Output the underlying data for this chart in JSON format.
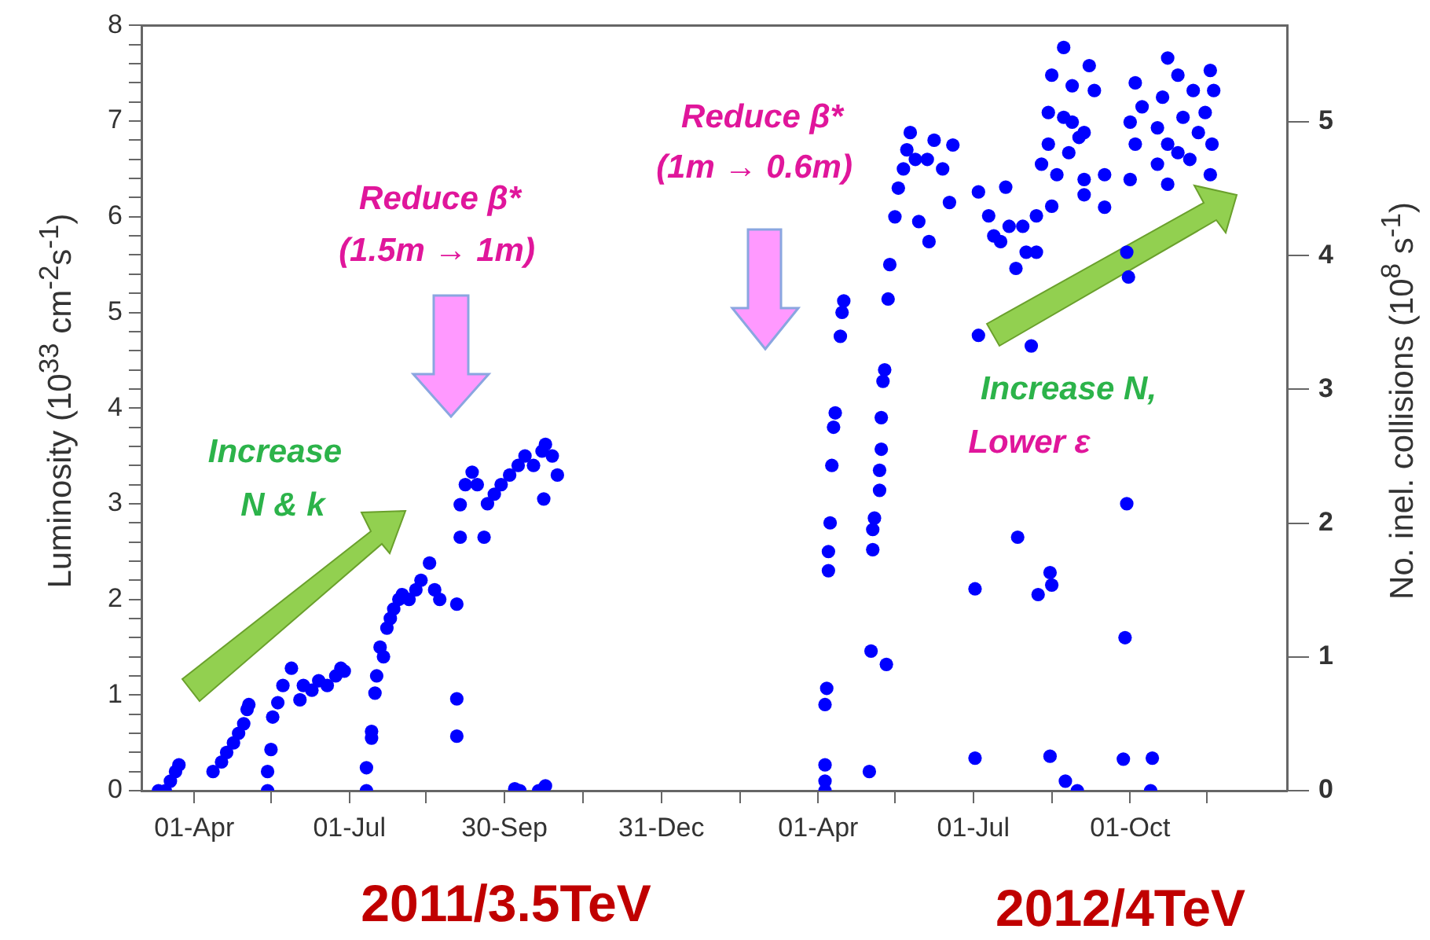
{
  "chart_data": {
    "type": "scatter",
    "ylabel": "Luminosity (10$^{33}$ cm$^{-2}$s$^{-1}$)",
    "y2label": "No. inel. collisions (10$^{8}$ s$^{-1}$)",
    "annotations": [
      "Reduce β*",
      "(1.5m → 1m)",
      "Reduce β*",
      "(1m → 0.6m)",
      "Increase",
      "N & k",
      "Increase N,",
      "Lower ε",
      "2011/3.5TeV",
      "2012/4TeV"
    ],
    "marker": "circle",
    "color": "#0000ff",
    "grid": false,
    "legend": false,
    "xlim": [
      "2011-03-01",
      "2013-01-01"
    ],
    "xticks": [
      {
        "value": "2011-04-01",
        "label": "01-Apr"
      },
      {
        "value": "2011-05-16",
        "label": null
      },
      {
        "value": "2011-07-01",
        "label": "01-Jul"
      },
      {
        "value": "2011-08-15",
        "label": null
      },
      {
        "value": "2011-09-30",
        "label": "30-Sep"
      },
      {
        "value": "2011-11-15",
        "label": null
      },
      {
        "value": "2011-12-31",
        "label": "31-Dec"
      },
      {
        "value": "2012-02-15",
        "label": null
      },
      {
        "value": "2012-04-01",
        "label": "01-Apr"
      },
      {
        "value": "2012-05-16",
        "label": null
      },
      {
        "value": "2012-07-01",
        "label": "01-Jul"
      },
      {
        "value": "2012-08-16",
        "label": null
      },
      {
        "value": "2012-10-01",
        "label": "01-Oct"
      },
      {
        "value": "2012-11-15",
        "label": null
      }
    ],
    "ylim": [
      0,
      8
    ],
    "yticks": [
      0,
      {
        "value": 0.2,
        "label": null
      },
      {
        "value": 0.4,
        "label": null
      },
      {
        "value": 0.6,
        "label": null
      },
      {
        "value": 0.8,
        "label": null
      },
      1,
      {
        "value": 1.2,
        "label": null
      },
      {
        "value": 1.4,
        "label": null
      },
      {
        "value": 1.6,
        "label": null
      },
      {
        "value": 1.8,
        "label": null
      },
      2,
      {
        "value": 2.2,
        "label": null
      },
      {
        "value": 2.4,
        "label": null
      },
      {
        "value": 2.6,
        "label": null
      },
      {
        "value": 2.8,
        "label": null
      },
      3,
      {
        "value": 3.2,
        "label": null
      },
      {
        "value": 3.4,
        "label": null
      },
      {
        "value": 3.6,
        "label": null
      },
      {
        "value": 3.8,
        "label": null
      },
      4,
      {
        "value": 4.2,
        "label": null
      },
      {
        "value": 4.4,
        "label": null
      },
      {
        "value": 4.6,
        "label": null
      },
      {
        "value": 4.8,
        "label": null
      },
      5,
      {
        "value": 5.2,
        "label": null
      },
      {
        "value": 5.4,
        "label": null
      },
      {
        "value": 5.6,
        "label": null
      },
      {
        "value": 5.8,
        "label": null
      },
      6,
      {
        "value": 6.2,
        "label": null
      },
      {
        "value": 6.4,
        "label": null
      },
      {
        "value": 6.6,
        "label": null
      },
      {
        "value": 6.8,
        "label": null
      },
      7,
      {
        "value": 7.2,
        "label": null
      },
      {
        "value": 7.4,
        "label": null
      },
      {
        "value": 7.6,
        "label": null
      },
      {
        "value": 7.8,
        "label": null
      },
      8
    ],
    "y2lim": [
      0,
      5.72
    ],
    "y2ticks": [
      0,
      1,
      2,
      3,
      4,
      5
    ],
    "x": [
      "2011-03-11",
      "2011-03-15",
      "2011-03-18",
      "2011-03-21",
      "2011-03-23",
      "2011-04-12",
      "2011-04-17",
      "2011-04-20",
      "2011-04-24",
      "2011-04-27",
      "2011-04-30",
      "2011-05-02",
      "2011-05-03",
      "2011-05-14",
      "2011-05-14",
      "2011-05-16",
      "2011-05-17",
      "2011-05-20",
      "2011-05-23",
      "2011-05-28",
      "2011-06-02",
      "2011-06-04",
      "2011-06-09",
      "2011-06-13",
      "2011-06-18",
      "2011-06-23",
      "2011-06-26",
      "2011-06-28",
      "2011-07-11",
      "2011-07-11",
      "2011-07-14",
      "2011-07-14",
      "2011-07-16",
      "2011-07-17",
      "2011-07-19",
      "2011-07-21",
      "2011-07-23",
      "2011-07-25",
      "2011-07-27",
      "2011-07-30",
      "2011-08-01",
      "2011-08-05",
      "2011-08-09",
      "2011-08-12",
      "2011-08-17",
      "2011-08-20",
      "2011-08-23",
      "2011-09-02",
      "2011-09-02",
      "2011-09-02",
      "2011-09-04",
      "2011-09-04",
      "2011-09-07",
      "2011-09-11",
      "2011-09-14",
      "2011-09-18",
      "2011-09-20",
      "2011-09-24",
      "2011-09-28",
      "2011-10-03",
      "2011-10-08",
      "2011-10-12",
      "2011-10-17",
      "2011-10-22",
      "2011-10-24",
      "2011-10-28",
      "2011-10-31",
      "2011-10-23",
      "2011-10-06",
      "2011-10-09",
      "2011-10-20",
      "2011-10-24",
      "2012-04-05",
      "2012-04-05",
      "2012-04-05",
      "2012-04-05",
      "2012-04-06",
      "2012-04-07",
      "2012-04-07",
      "2012-04-08",
      "2012-04-09",
      "2012-04-10",
      "2012-04-11",
      "2012-04-14",
      "2012-04-15",
      "2012-04-16",
      "2012-05-01",
      "2012-05-02",
      "2012-05-11",
      "2012-05-03",
      "2012-05-03",
      "2012-05-04",
      "2012-05-07",
      "2012-05-07",
      "2012-05-08",
      "2012-05-08",
      "2012-05-09",
      "2012-05-10",
      "2012-05-12",
      "2012-05-13",
      "2012-05-16",
      "2012-05-18",
      "2012-05-21",
      "2012-05-23",
      "2012-05-25",
      "2012-05-28",
      "2012-05-30",
      "2012-06-05",
      "2012-06-04",
      "2012-06-08",
      "2012-06-13",
      "2012-06-17",
      "2012-06-19",
      "2012-07-02",
      "2012-07-02",
      "2012-07-04",
      "2012-07-04",
      "2012-07-20",
      "2012-07-10",
      "2012-07-17",
      "2012-07-26",
      "2012-08-04",
      "2012-08-01",
      "2012-08-07",
      "2012-08-16",
      "2012-08-07",
      "2012-07-22",
      "2012-07-13",
      "2012-07-30",
      "2012-08-23",
      "2012-08-16",
      "2012-08-28",
      "2012-09-07",
      "2012-09-10",
      "2012-08-14",
      "2012-08-23",
      "2012-09-04",
      "2012-08-14",
      "2012-08-26",
      "2012-08-10",
      "2012-08-19",
      "2012-09-01",
      "2012-09-04",
      "2012-09-16",
      "2012-09-04",
      "2012-09-16",
      "2012-08-28",
      "2012-07-27",
      "2012-08-08",
      "2012-08-15",
      "2012-08-16",
      "2012-08-15",
      "2012-08-24",
      "2012-08-31",
      "2012-09-29",
      "2012-09-30",
      "2012-10-23",
      "2012-10-04",
      "2012-10-29",
      "2012-11-17",
      "2012-10-08",
      "2012-10-20",
      "2012-11-07",
      "2012-11-19",
      "2012-10-01",
      "2012-10-17",
      "2012-11-01",
      "2012-11-14",
      "2012-10-04",
      "2012-10-23",
      "2012-11-10",
      "2012-11-18",
      "2012-10-01",
      "2012-10-17",
      "2012-10-29",
      "2012-11-17",
      "2012-10-23",
      "2012-11-05",
      "2012-09-29",
      "2012-09-28",
      "2012-09-27",
      "2012-10-14",
      "2012-10-13"
    ],
    "values": [
      0,
      0,
      0.1,
      0.2,
      0.27,
      0.2,
      0.3,
      0.4,
      0.5,
      0.6,
      0.7,
      0.85,
      0.9,
      0,
      0.2,
      0.43,
      0.77,
      0.92,
      1.1,
      1.28,
      0.95,
      1.1,
      1.05,
      1.15,
      1.1,
      1.2,
      1.28,
      1.25,
      0,
      0.24,
      0.62,
      0.55,
      1.02,
      1.2,
      1.5,
      1.4,
      1.7,
      1.8,
      1.9,
      2.0,
      2.05,
      2.0,
      2.1,
      2.2,
      2.38,
      2.1,
      2.0,
      0.57,
      0.96,
      1.95,
      2.65,
      2.99,
      3.2,
      3.33,
      3.2,
      2.65,
      3.0,
      3.1,
      3.2,
      3.3,
      3.4,
      3.5,
      3.4,
      3.55,
      3.62,
      3.5,
      3.3,
      3.05,
      0.02,
      0,
      0,
      0.05,
      0,
      0.1,
      0.27,
      0.9,
      1.07,
      2.3,
      2.5,
      2.8,
      3.4,
      3.8,
      3.95,
      4.75,
      5.0,
      5.12,
      0.2,
      1.46,
      1.32,
      2.73,
      2.52,
      2.85,
      3.14,
      3.35,
      3.57,
      3.9,
      4.28,
      4.4,
      5.14,
      5.5,
      6.0,
      6.3,
      6.5,
      6.7,
      6.88,
      6.6,
      5.95,
      5.74,
      6.6,
      6.8,
      6.5,
      6.15,
      6.75,
      2.11,
      0.34,
      6.26,
      4.76,
      6.31,
      6.01,
      5.74,
      5.46,
      4.65,
      5.63,
      6.01,
      6.11,
      5.63,
      5.9,
      5.8,
      5.9,
      7.77,
      7.48,
      7.37,
      7.58,
      7.32,
      7.09,
      7.04,
      6.88,
      6.76,
      6.67,
      6.55,
      6.44,
      6.83,
      6.39,
      6.44,
      6.23,
      6.1,
      6.99,
      2.65,
      2.05,
      2.28,
      2.15,
      0.36,
      0.1,
      0,
      5.63,
      5.37,
      7.66,
      7.4,
      7.48,
      7.53,
      7.15,
      7.25,
      7.32,
      7.32,
      6.99,
      6.93,
      7.04,
      7.09,
      6.76,
      6.76,
      6.88,
      6.76,
      6.39,
      6.55,
      6.67,
      6.44,
      6.34,
      6.6,
      3.0,
      1.6,
      0.33,
      0.34,
      0
    ]
  }
}
